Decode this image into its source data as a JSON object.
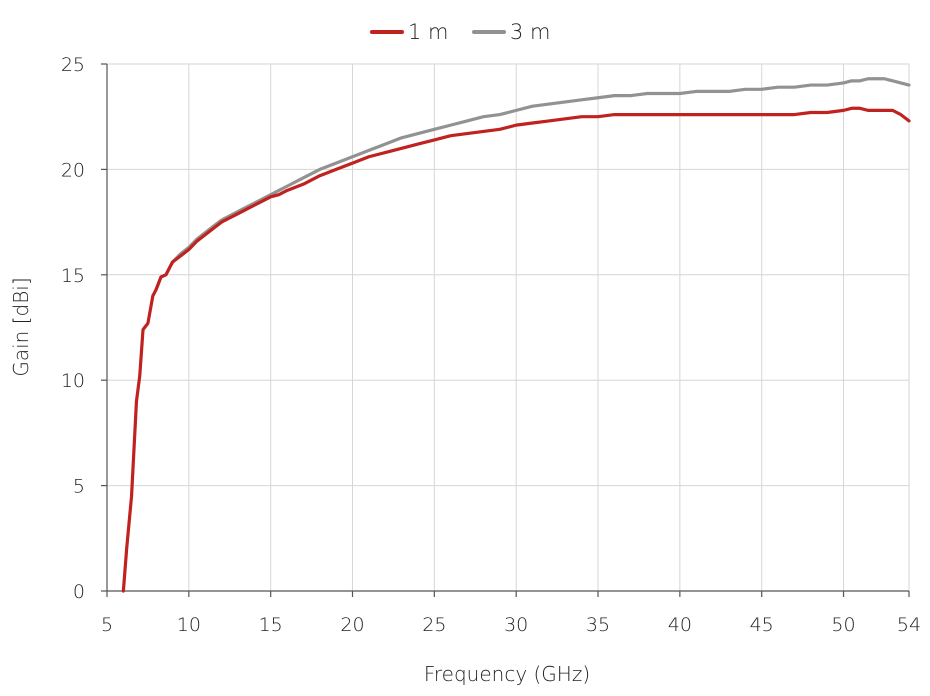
{
  "chart_data": {
    "type": "line",
    "title": "",
    "xlabel": "Frequency (GHz)",
    "ylabel": "Gain [dBi]",
    "xlim": [
      5,
      54
    ],
    "ylim": [
      0,
      25
    ],
    "x_ticks": [
      5,
      10,
      15,
      20,
      25,
      30,
      35,
      40,
      45,
      50,
      54
    ],
    "y_ticks": [
      0,
      5,
      10,
      15,
      20,
      25
    ],
    "grid": true,
    "legend_position": "top-center",
    "series": [
      {
        "name": "1 m",
        "color": "#c0221f",
        "x": [
          6.0,
          6.2,
          6.5,
          6.8,
          7.0,
          7.2,
          7.5,
          7.8,
          8.0,
          8.3,
          8.6,
          9.0,
          9.5,
          10.0,
          10.5,
          11.0,
          11.5,
          12.0,
          12.5,
          13.0,
          13.5,
          14.0,
          14.5,
          15.0,
          15.5,
          16.0,
          17.0,
          18.0,
          19.0,
          20.0,
          21.0,
          22.0,
          23.0,
          24.0,
          25.0,
          26.0,
          27.0,
          28.0,
          29.0,
          30.0,
          31.0,
          32.0,
          33.0,
          34.0,
          35.0,
          36.0,
          37.0,
          38.0,
          39.0,
          40.0,
          41.0,
          42.0,
          43.0,
          44.0,
          45.0,
          46.0,
          47.0,
          48.0,
          49.0,
          50.0,
          50.5,
          51.0,
          51.5,
          52.0,
          52.5,
          53.0,
          53.5,
          54.0
        ],
        "values": [
          0.0,
          2.0,
          4.5,
          9.0,
          10.2,
          12.4,
          12.7,
          14.0,
          14.3,
          14.9,
          15.0,
          15.6,
          15.9,
          16.2,
          16.6,
          16.9,
          17.2,
          17.5,
          17.7,
          17.9,
          18.1,
          18.3,
          18.5,
          18.7,
          18.8,
          19.0,
          19.3,
          19.7,
          20.0,
          20.3,
          20.6,
          20.8,
          21.0,
          21.2,
          21.4,
          21.6,
          21.7,
          21.8,
          21.9,
          22.1,
          22.2,
          22.3,
          22.4,
          22.5,
          22.5,
          22.6,
          22.6,
          22.6,
          22.6,
          22.6,
          22.6,
          22.6,
          22.6,
          22.6,
          22.6,
          22.6,
          22.6,
          22.7,
          22.7,
          22.8,
          22.9,
          22.9,
          22.8,
          22.8,
          22.8,
          22.8,
          22.6,
          22.3
        ]
      },
      {
        "name": "3 m",
        "color": "#929292",
        "x": [
          8.0,
          8.3,
          8.6,
          9.0,
          9.5,
          10.0,
          10.5,
          11.0,
          11.5,
          12.0,
          12.5,
          13.0,
          13.5,
          14.0,
          14.5,
          15.0,
          15.5,
          16.0,
          17.0,
          18.0,
          19.0,
          20.0,
          21.0,
          22.0,
          23.0,
          24.0,
          25.0,
          26.0,
          27.0,
          28.0,
          29.0,
          30.0,
          31.0,
          32.0,
          33.0,
          34.0,
          35.0,
          36.0,
          37.0,
          38.0,
          39.0,
          40.0,
          41.0,
          42.0,
          43.0,
          44.0,
          45.0,
          46.0,
          47.0,
          48.0,
          49.0,
          50.0,
          50.5,
          51.0,
          51.5,
          52.0,
          52.5,
          53.0,
          53.5,
          54.0
        ],
        "values": [
          14.3,
          14.9,
          15.0,
          15.6,
          16.0,
          16.3,
          16.7,
          17.0,
          17.3,
          17.6,
          17.8,
          18.0,
          18.2,
          18.4,
          18.6,
          18.8,
          19.0,
          19.2,
          19.6,
          20.0,
          20.3,
          20.6,
          20.9,
          21.2,
          21.5,
          21.7,
          21.9,
          22.1,
          22.3,
          22.5,
          22.6,
          22.8,
          23.0,
          23.1,
          23.2,
          23.3,
          23.4,
          23.5,
          23.5,
          23.6,
          23.6,
          23.6,
          23.7,
          23.7,
          23.7,
          23.8,
          23.8,
          23.9,
          23.9,
          24.0,
          24.0,
          24.1,
          24.2,
          24.2,
          24.3,
          24.3,
          24.3,
          24.2,
          24.1,
          24.0
        ]
      }
    ]
  }
}
